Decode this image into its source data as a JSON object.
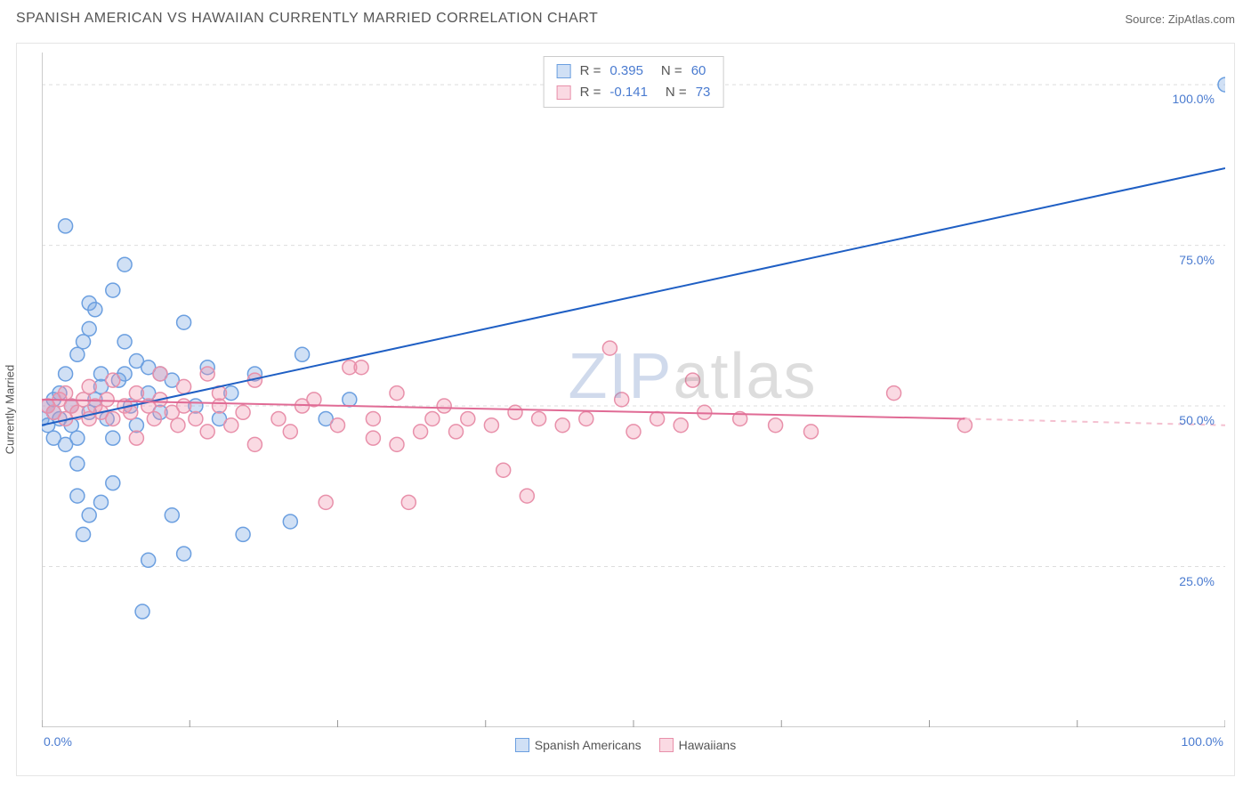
{
  "header": {
    "title": "SPANISH AMERICAN VS HAWAIIAN CURRENTLY MARRIED CORRELATION CHART",
    "source": "Source: ZipAtlas.com"
  },
  "watermark": {
    "part1": "ZIP",
    "part2": "atlas"
  },
  "chart": {
    "type": "scatter",
    "ylabel": "Currently Married",
    "background_color": "#ffffff",
    "grid_color": "#dddddd",
    "axis_color": "#cccccc",
    "tick_color": "#999999",
    "label_color": "#4a7bd0",
    "xlim": [
      0,
      100
    ],
    "ylim": [
      0,
      105
    ],
    "ytick_positions": [
      25,
      50,
      75,
      100
    ],
    "ytick_labels": [
      "25.0%",
      "50.0%",
      "75.0%",
      "100.0%"
    ],
    "xtick_positions": [
      0,
      12.5,
      25,
      37.5,
      50,
      62.5,
      75,
      87.5,
      100
    ],
    "xtick_label_left": "0.0%",
    "xtick_label_right": "100.0%",
    "marker_radius": 8,
    "marker_stroke_width": 1.5,
    "trend_line_width": 2,
    "series": [
      {
        "name": "Spanish Americans",
        "fill": "rgba(120,165,225,0.35)",
        "stroke": "#6b9fe0",
        "line_color": "#1f5fc4",
        "R": "0.395",
        "N": "60",
        "trend": {
          "x1": 0,
          "y1": 47,
          "x2": 100,
          "y2": 87
        },
        "points": [
          [
            0,
            48
          ],
          [
            0.5,
            50
          ],
          [
            0.5,
            47
          ],
          [
            1,
            49
          ],
          [
            1,
            51
          ],
          [
            1,
            45
          ],
          [
            1.5,
            52
          ],
          [
            1.5,
            48
          ],
          [
            2,
            44
          ],
          [
            2,
            55
          ],
          [
            2,
            78
          ],
          [
            2.5,
            50
          ],
          [
            2.5,
            47
          ],
          [
            3,
            58
          ],
          [
            3,
            45
          ],
          [
            3,
            41
          ],
          [
            3.5,
            60
          ],
          [
            3.5,
            30
          ],
          [
            4,
            62
          ],
          [
            4,
            49
          ],
          [
            4,
            66
          ],
          [
            4.5,
            65
          ],
          [
            4.5,
            51
          ],
          [
            5,
            53
          ],
          [
            5,
            55
          ],
          [
            5,
            35
          ],
          [
            5.5,
            48
          ],
          [
            6,
            68
          ],
          [
            6,
            45
          ],
          [
            6.5,
            54
          ],
          [
            7,
            60
          ],
          [
            7,
            55
          ],
          [
            7,
            72
          ],
          [
            7.5,
            50
          ],
          [
            8,
            57
          ],
          [
            8,
            47
          ],
          [
            8.5,
            18
          ],
          [
            9,
            56
          ],
          [
            9,
            52
          ],
          [
            10,
            55
          ],
          [
            10,
            49
          ],
          [
            11,
            33
          ],
          [
            11,
            54
          ],
          [
            12,
            63
          ],
          [
            13,
            50
          ],
          [
            14,
            56
          ],
          [
            15,
            48
          ],
          [
            16,
            52
          ],
          [
            17,
            30
          ],
          [
            18,
            55
          ],
          [
            12,
            27
          ],
          [
            21,
            32
          ],
          [
            22,
            58
          ],
          [
            24,
            48
          ],
          [
            26,
            51
          ],
          [
            3,
            36
          ],
          [
            4,
            33
          ],
          [
            6,
            38
          ],
          [
            100,
            100
          ],
          [
            9,
            26
          ]
        ]
      },
      {
        "name": "Hawaiians",
        "fill": "rgba(240,150,175,0.35)",
        "stroke": "#e890aa",
        "line_color": "#e06b95",
        "dash_color": "#f4c0d0",
        "R": "-0.141",
        "N": "73",
        "trend": {
          "x1": 0,
          "y1": 51,
          "x2": 78,
          "y2": 48
        },
        "trend_dash": {
          "x1": 78,
          "y1": 48,
          "x2": 100,
          "y2": 47
        },
        "points": [
          [
            0.5,
            50
          ],
          [
            1,
            49
          ],
          [
            1.5,
            51
          ],
          [
            2,
            48
          ],
          [
            2,
            52
          ],
          [
            2.5,
            50
          ],
          [
            3,
            49
          ],
          [
            3.5,
            51
          ],
          [
            4,
            48
          ],
          [
            4,
            53
          ],
          [
            4.5,
            50
          ],
          [
            5,
            49
          ],
          [
            5.5,
            51
          ],
          [
            6,
            48
          ],
          [
            6,
            54
          ],
          [
            7,
            50
          ],
          [
            7.5,
            49
          ],
          [
            8,
            52
          ],
          [
            8,
            45
          ],
          [
            9,
            50
          ],
          [
            9.5,
            48
          ],
          [
            10,
            51
          ],
          [
            10,
            55
          ],
          [
            11,
            49
          ],
          [
            11.5,
            47
          ],
          [
            12,
            50
          ],
          [
            12,
            53
          ],
          [
            13,
            48
          ],
          [
            14,
            55
          ],
          [
            14,
            46
          ],
          [
            15,
            50
          ],
          [
            15,
            52
          ],
          [
            16,
            47
          ],
          [
            17,
            49
          ],
          [
            18,
            44
          ],
          [
            18,
            54
          ],
          [
            20,
            48
          ],
          [
            21,
            46
          ],
          [
            22,
            50
          ],
          [
            23,
            51
          ],
          [
            24,
            35
          ],
          [
            25,
            47
          ],
          [
            26,
            56
          ],
          [
            28,
            48
          ],
          [
            28,
            45
          ],
          [
            30,
            44
          ],
          [
            30,
            52
          ],
          [
            32,
            46
          ],
          [
            33,
            48
          ],
          [
            34,
            50
          ],
          [
            35,
            46
          ],
          [
            36,
            48
          ],
          [
            38,
            47
          ],
          [
            39,
            40
          ],
          [
            40,
            49
          ],
          [
            41,
            36
          ],
          [
            42,
            48
          ],
          [
            44,
            47
          ],
          [
            46,
            48
          ],
          [
            48,
            59
          ],
          [
            50,
            46
          ],
          [
            52,
            48
          ],
          [
            54,
            47
          ],
          [
            55,
            54
          ],
          [
            56,
            49
          ],
          [
            59,
            48
          ],
          [
            62,
            47
          ],
          [
            65,
            46
          ],
          [
            49,
            51
          ],
          [
            72,
            52
          ],
          [
            78,
            47
          ],
          [
            31,
            35
          ],
          [
            27,
            56
          ]
        ]
      }
    ],
    "bottom_legend": [
      {
        "label": "Spanish Americans",
        "fill": "rgba(120,165,225,0.35)",
        "stroke": "#6b9fe0"
      },
      {
        "label": "Hawaiians",
        "fill": "rgba(240,150,175,0.35)",
        "stroke": "#e890aa"
      }
    ]
  }
}
